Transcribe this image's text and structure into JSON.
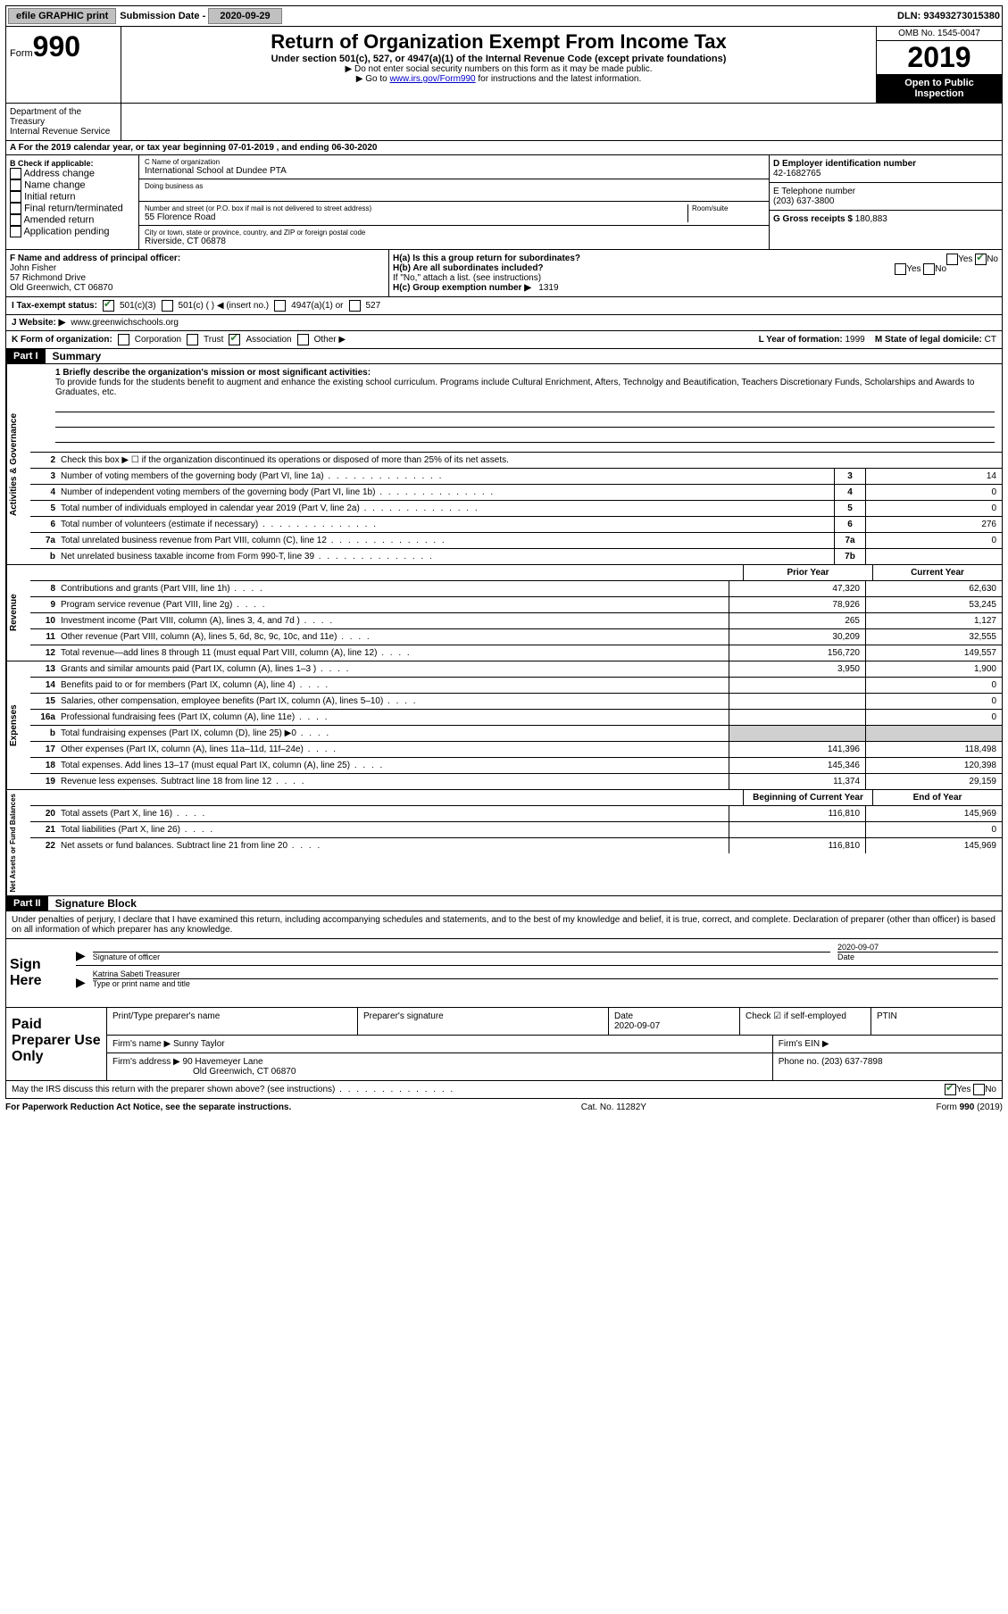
{
  "topbar": {
    "efile_label": "efile GRAPHIC print",
    "submission_label": "Submission Date - ",
    "submission_date": "2020-09-29",
    "dln_label": "DLN: ",
    "dln": "93493273015380"
  },
  "header": {
    "form_prefix": "Form",
    "form_number": "990",
    "title": "Return of Organization Exempt From Income Tax",
    "subtitle": "Under section 501(c), 527, or 4947(a)(1) of the Internal Revenue Code (except private foundations)",
    "note1": "▶ Do not enter social security numbers on this form as it may be made public.",
    "note2_prefix": "▶ Go to ",
    "note2_link": "www.irs.gov/Form990",
    "note2_suffix": " for instructions and the latest information.",
    "omb": "OMB No. 1545-0047",
    "year": "2019",
    "inspect1": "Open to Public",
    "inspect2": "Inspection",
    "dept": "Department of the Treasury\nInternal Revenue Service"
  },
  "line_a": "A   For the 2019 calendar year, or tax year beginning 07-01-2019     , and ending 06-30-2020",
  "b_check": {
    "label": "B Check if applicable:",
    "items": [
      "Address change",
      "Name change",
      "Initial return",
      "Final return/terminated",
      "Amended return",
      "Application pending"
    ]
  },
  "c_name": {
    "label": "C Name of organization",
    "value": "International School at Dundee PTA",
    "dba_label": "Doing business as",
    "addr_label": "Number and street (or P.O. box if mail is not delivered to street address)",
    "addr": "55 Florence Road",
    "room_label": "Room/suite",
    "city_label": "City or town, state or province, country, and ZIP or foreign postal code",
    "city": "Riverside, CT  06878"
  },
  "d_ein": {
    "label": "D Employer identification number",
    "value": "42-1682765"
  },
  "e_tel": {
    "label": "E Telephone number",
    "value": "(203) 637-3800"
  },
  "g_gross": {
    "label": "G Gross receipts $",
    "value": "180,883"
  },
  "f_officer": {
    "label": "F  Name and address of principal officer:",
    "name": "John Fisher",
    "addr1": "57 Richmond Drive",
    "addr2": "Old Greenwich, CT  06870"
  },
  "h": {
    "ha_label": "H(a)  Is this a group return for subordinates?",
    "ha_yes": "Yes",
    "ha_no": "No",
    "hb_label": "H(b)  Are all subordinates included?",
    "hb_note": "If \"No,\" attach a list. (see instructions)",
    "hc_label": "H(c)  Group exemption number ▶",
    "hc_value": "1319"
  },
  "i_tax": {
    "label": "I   Tax-exempt status:",
    "opt1": "501(c)(3)",
    "opt2": "501(c) (  ) ◀ (insert no.)",
    "opt3": "4947(a)(1) or",
    "opt4": "527"
  },
  "j_web": {
    "label": "J   Website: ▶",
    "value": "www.greenwichschools.org"
  },
  "k_row": {
    "label": "K Form of organization:",
    "opt1": "Corporation",
    "opt2": "Trust",
    "opt3": "Association",
    "opt4": "Other ▶",
    "l_label": "L Year of formation:",
    "l_value": "1999",
    "m_label": "M State of legal domicile:",
    "m_value": "CT"
  },
  "part1": {
    "bar": "Part I",
    "title": "Summary",
    "mission_label": "1  Briefly describe the organization's mission or most significant activities:",
    "mission": "To provide funds for the students benefit to augment and enhance the existing school curriculum. Programs include Cultural Enrichment, Afters, Technolgy and Beautification, Teachers Discretionary Funds, Scholarships and Awards to Graduates, etc.",
    "line2": "Check this box ▶ ☐ if the organization discontinued its operations or disposed of more than 25% of its net assets.",
    "tabs": {
      "gov": "Activities & Governance",
      "rev": "Revenue",
      "exp": "Expenses",
      "net": "Net Assets or Fund Balances"
    },
    "gov_lines": [
      {
        "n": "3",
        "d": "Number of voting members of the governing body (Part VI, line 1a)",
        "box": "3",
        "v": "14"
      },
      {
        "n": "4",
        "d": "Number of independent voting members of the governing body (Part VI, line 1b)",
        "box": "4",
        "v": "0"
      },
      {
        "n": "5",
        "d": "Total number of individuals employed in calendar year 2019 (Part V, line 2a)",
        "box": "5",
        "v": "0"
      },
      {
        "n": "6",
        "d": "Total number of volunteers (estimate if necessary)",
        "box": "6",
        "v": "276"
      },
      {
        "n": "7a",
        "d": "Total unrelated business revenue from Part VIII, column (C), line 12",
        "box": "7a",
        "v": "0"
      },
      {
        "n": "b",
        "d": "Net unrelated business taxable income from Form 990-T, line 39",
        "box": "7b",
        "v": ""
      }
    ],
    "col_head_prior": "Prior Year",
    "col_head_current": "Current Year",
    "rev_lines": [
      {
        "n": "8",
        "d": "Contributions and grants (Part VIII, line 1h)",
        "p": "47,320",
        "c": "62,630"
      },
      {
        "n": "9",
        "d": "Program service revenue (Part VIII, line 2g)",
        "p": "78,926",
        "c": "53,245"
      },
      {
        "n": "10",
        "d": "Investment income (Part VIII, column (A), lines 3, 4, and 7d )",
        "p": "265",
        "c": "1,127"
      },
      {
        "n": "11",
        "d": "Other revenue (Part VIII, column (A), lines 5, 6d, 8c, 9c, 10c, and 11e)",
        "p": "30,209",
        "c": "32,555"
      },
      {
        "n": "12",
        "d": "Total revenue—add lines 8 through 11 (must equal Part VIII, column (A), line 12)",
        "p": "156,720",
        "c": "149,557"
      }
    ],
    "exp_lines": [
      {
        "n": "13",
        "d": "Grants and similar amounts paid (Part IX, column (A), lines 1–3 )",
        "p": "3,950",
        "c": "1,900"
      },
      {
        "n": "14",
        "d": "Benefits paid to or for members (Part IX, column (A), line 4)",
        "p": "",
        "c": "0"
      },
      {
        "n": "15",
        "d": "Salaries, other compensation, employee benefits (Part IX, column (A), lines 5–10)",
        "p": "",
        "c": "0"
      },
      {
        "n": "16a",
        "d": "Professional fundraising fees (Part IX, column (A), line 11e)",
        "p": "",
        "c": "0"
      },
      {
        "n": "b",
        "d": "Total fundraising expenses (Part IX, column (D), line 25) ▶0",
        "p": "GRAY",
        "c": "GRAY"
      },
      {
        "n": "17",
        "d": "Other expenses (Part IX, column (A), lines 11a–11d, 11f–24e)",
        "p": "141,396",
        "c": "118,498"
      },
      {
        "n": "18",
        "d": "Total expenses. Add lines 13–17 (must equal Part IX, column (A), line 25)",
        "p": "145,346",
        "c": "120,398"
      },
      {
        "n": "19",
        "d": "Revenue less expenses. Subtract line 18 from line 12",
        "p": "11,374",
        "c": "29,159"
      }
    ],
    "net_head_begin": "Beginning of Current Year",
    "net_head_end": "End of Year",
    "net_lines": [
      {
        "n": "20",
        "d": "Total assets (Part X, line 16)",
        "p": "116,810",
        "c": "145,969"
      },
      {
        "n": "21",
        "d": "Total liabilities (Part X, line 26)",
        "p": "",
        "c": "0"
      },
      {
        "n": "22",
        "d": "Net assets or fund balances. Subtract line 21 from line 20",
        "p": "116,810",
        "c": "145,969"
      }
    ]
  },
  "part2": {
    "bar": "Part II",
    "title": "Signature Block",
    "decl": "Under penalties of perjury, I declare that I have examined this return, including accompanying schedules and statements, and to the best of my knowledge and belief, it is true, correct, and complete. Declaration of preparer (other than officer) is based on all information of which preparer has any knowledge.",
    "sign_here": "Sign Here",
    "sig_officer_label": "Signature of officer",
    "sig_date_label": "Date",
    "sig_date": "2020-09-07",
    "typed_name": "Katrina Sabeti  Treasurer",
    "typed_label": "Type or print name and title"
  },
  "prep": {
    "label": "Paid Preparer Use Only",
    "h1": "Print/Type preparer's name",
    "h2": "Preparer's signature",
    "h3_label": "Date",
    "h3": "2020-09-07",
    "h4_label": "Check ☑ if self-employed",
    "h5": "PTIN",
    "firm_name_label": "Firm's name   ▶",
    "firm_name": "Sunny Taylor",
    "firm_ein_label": "Firm's EIN ▶",
    "firm_addr_label": "Firm's address ▶",
    "firm_addr1": "90 Havemeyer Lane",
    "firm_addr2": "Old Greenwich, CT  06870",
    "phone_label": "Phone no.",
    "phone": "(203) 637-7898"
  },
  "footer": {
    "discuss": "May the IRS discuss this return with the preparer shown above? (see instructions)",
    "yes": "Yes",
    "no": "No",
    "pra": "For Paperwork Reduction Act Notice, see the separate instructions.",
    "cat": "Cat. No. 11282Y",
    "form": "Form 990 (2019)"
  },
  "colors": {
    "black": "#000000",
    "white": "#ffffff",
    "gray_btn": "#c0c0c0",
    "gray_fill": "#d0d0d0",
    "link_blue": "#0000cc",
    "check_green": "#2e7d32"
  }
}
